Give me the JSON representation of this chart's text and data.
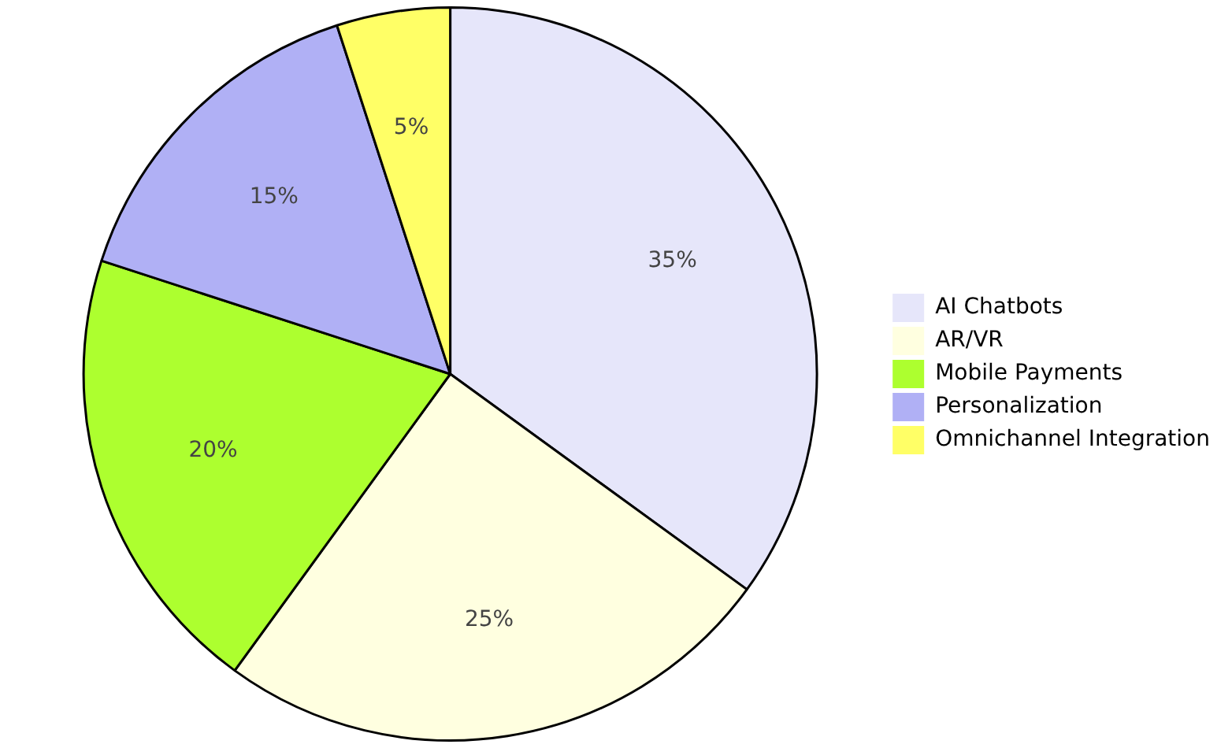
{
  "chart_data": {
    "type": "pie",
    "categories": [
      "AI Chatbots",
      "AR/VR",
      "Mobile Payments",
      "Personalization",
      "Omnichannel Integration"
    ],
    "values": [
      35,
      25,
      20,
      15,
      5
    ],
    "colors": [
      "#e6e6fa",
      "#ffffe0",
      "#adff2f",
      "#b0b0f5",
      "#ffff66"
    ],
    "value_labels": [
      "35%",
      "25%",
      "20%",
      "15%",
      "5%"
    ],
    "legend": "right"
  }
}
